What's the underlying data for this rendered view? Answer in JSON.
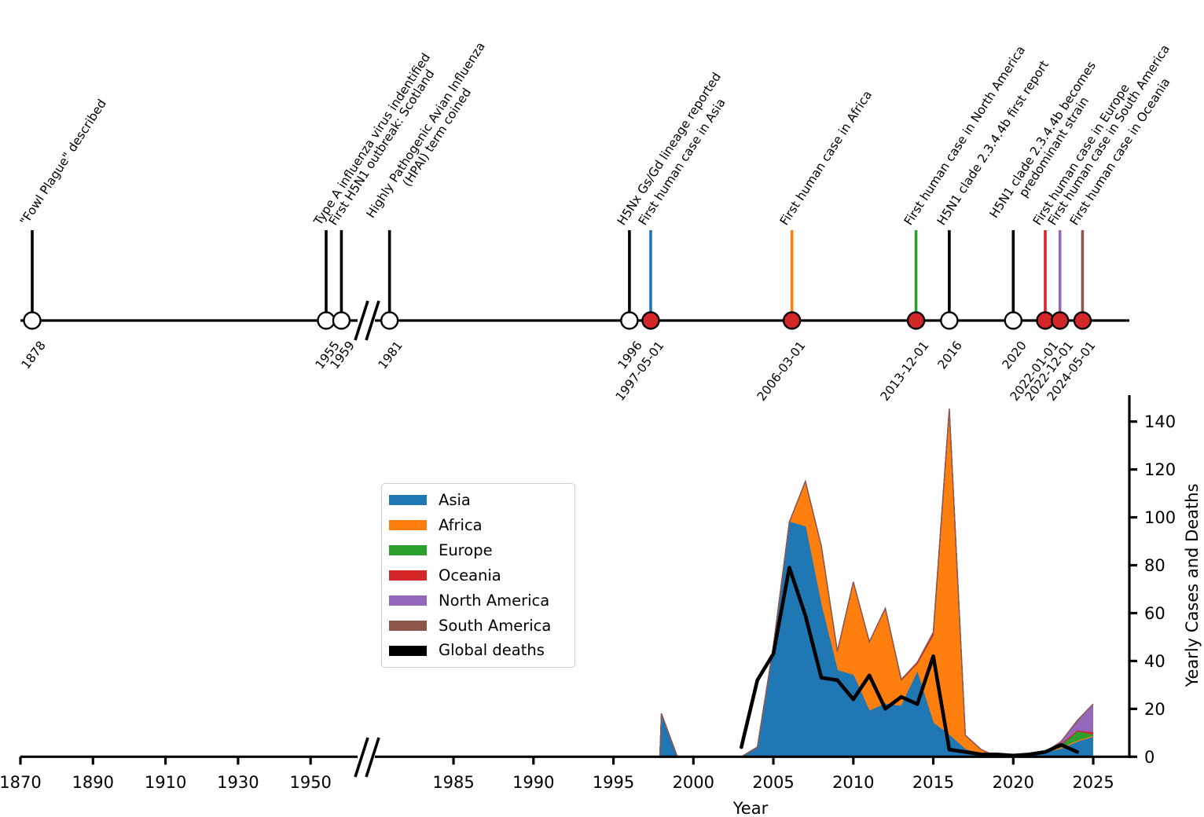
{
  "timeline": {
    "events": [
      {
        "date_label": "1878",
        "year": 1878,
        "lines": [
          "\"Fowl Plague\" described"
        ],
        "stem_color": "#000000",
        "marker_fill": "#ffffff"
      },
      {
        "date_label": "1955",
        "year": 1955,
        "lines": [
          "Type A influenza virus indentified"
        ],
        "stem_color": "#000000",
        "marker_fill": "#ffffff"
      },
      {
        "date_label": "1959",
        "year": 1959,
        "lines": [
          "First H5N1 outbreak: Scotland"
        ],
        "stem_color": "#000000",
        "marker_fill": "#ffffff"
      },
      {
        "date_label": "1981",
        "year": 1981,
        "lines": [
          "Highly Pathogenic Avian Influenza",
          "(HPAI) term coined"
        ],
        "stem_color": "#000000",
        "marker_fill": "#ffffff"
      },
      {
        "date_label": "1996",
        "year": 1996,
        "lines": [
          "H5Nx Gs/Gd lineage reported"
        ],
        "stem_color": "#000000",
        "marker_fill": "#ffffff"
      },
      {
        "date_label": "1997-05-01",
        "year": 1997.33,
        "lines": [
          "First human case in Asia"
        ],
        "stem_color": "#1f77b4",
        "marker_fill": "#d62728"
      },
      {
        "date_label": "2006-03-01",
        "year": 2006.16,
        "lines": [
          "First human case in Africa"
        ],
        "stem_color": "#ff7f0e",
        "marker_fill": "#d62728"
      },
      {
        "date_label": "2013-12-01",
        "year": 2013.92,
        "lines": [
          "First human case in North America"
        ],
        "stem_color": "#2ca02c",
        "marker_fill": "#d62728"
      },
      {
        "date_label": "2016",
        "year": 2016,
        "lines": [
          "H5N1 clade 2.3.4.4b first report"
        ],
        "stem_color": "#000000",
        "marker_fill": "#ffffff"
      },
      {
        "date_label": "2020",
        "year": 2020,
        "lines": [
          "H5N1 clade 2.3.4.4b becomes",
          "predominant strain"
        ],
        "stem_color": "#000000",
        "marker_fill": "#ffffff"
      },
      {
        "date_label": "2022-01-01",
        "year": 2022.0,
        "lines": [
          "First human case in Europe"
        ],
        "stem_color": "#d62728",
        "marker_fill": "#d62728"
      },
      {
        "date_label": "2022-12-01",
        "year": 2022.92,
        "lines": [
          "First human case in South America"
        ],
        "stem_color": "#9467bd",
        "marker_fill": "#d62728"
      },
      {
        "date_label": "2024-05-01",
        "year": 2024.33,
        "lines": [
          "First human case in Oceania"
        ],
        "stem_color": "#8c564b",
        "marker_fill": "#d62728"
      }
    ],
    "axis_break_between": [
      "1959",
      "1981"
    ]
  },
  "chart_data": {
    "type": "area",
    "stacked": true,
    "xlabel": "Year",
    "ylabel": "Yearly Cases and Deaths",
    "x_ticks_left": [
      1870,
      1890,
      1910,
      1930,
      1950
    ],
    "x_ticks_right": [
      1985,
      1990,
      1995,
      2000,
      2005,
      2010,
      2015,
      2020,
      2025
    ],
    "y_ticks": [
      0,
      20,
      40,
      60,
      80,
      100,
      120,
      140
    ],
    "ylim": [
      0,
      145
    ],
    "grid": false,
    "axis_break_on_x": true,
    "years_as_plotted": [
      1997,
      1997.9,
      1998,
      1999,
      2003,
      2004,
      2005,
      2006,
      2007,
      2008,
      2009,
      2010,
      2011,
      2012,
      2013,
      2014,
      2015,
      2016,
      2017,
      2018,
      2019,
      2020,
      2021,
      2022,
      2023,
      2024,
      2025
    ],
    "series": [
      {
        "name": "Asia",
        "color": "#1f77b4",
        "values": [
          0,
          0,
          18,
          0,
          0,
          4,
          46,
          98,
          96,
          63,
          36,
          34,
          19,
          22,
          21,
          35,
          14,
          9,
          3,
          1,
          0,
          1,
          1,
          2,
          3.5,
          6.5,
          8.5
        ]
      },
      {
        "name": "Africa",
        "color": "#ff7f0e",
        "values": [
          0,
          0,
          0,
          0,
          0,
          0,
          0,
          0,
          19,
          25,
          8,
          39,
          29,
          40,
          11,
          4,
          37,
          136,
          6,
          2,
          0,
          0,
          0,
          0,
          0,
          0,
          0
        ]
      },
      {
        "name": "Europe",
        "color": "#2ca02c",
        "values": [
          0,
          0,
          0,
          0,
          0,
          0,
          0,
          0,
          0,
          0,
          0,
          0,
          0,
          0,
          0,
          0,
          0,
          0,
          0,
          0,
          0,
          0,
          0,
          0,
          1.5,
          4,
          0.5
        ]
      },
      {
        "name": "Oceania",
        "color": "#d62728",
        "values": [
          0,
          0,
          0,
          0,
          0,
          0,
          0,
          0,
          0,
          0,
          0,
          0,
          0,
          0,
          0,
          0,
          0,
          0,
          0,
          0,
          0,
          0,
          0,
          0,
          0,
          0.2,
          1
        ]
      },
      {
        "name": "North America",
        "color": "#9467bd",
        "values": [
          0,
          0,
          0,
          0,
          0,
          0,
          0,
          0,
          0,
          0,
          0,
          0,
          0,
          0,
          0.3,
          0.5,
          1,
          0.5,
          0,
          0,
          0,
          0,
          0,
          0,
          1,
          3.5,
          12
        ]
      },
      {
        "name": "South America",
        "color": "#8c564b",
        "values": [
          0,
          0,
          0,
          0,
          0,
          0,
          0,
          0,
          0,
          0,
          0,
          0,
          0,
          0,
          0,
          0,
          0,
          0,
          0,
          0,
          0,
          0,
          0,
          0,
          0.5,
          1,
          0.1
        ]
      }
    ],
    "deaths_line": {
      "name": "Global deaths",
      "color": "#000000",
      "points": [
        [
          2003,
          4
        ],
        [
          2004,
          32
        ],
        [
          2005,
          43
        ],
        [
          2006,
          79
        ],
        [
          2007,
          59
        ],
        [
          2008,
          33
        ],
        [
          2009,
          32
        ],
        [
          2010,
          24
        ],
        [
          2011,
          34
        ],
        [
          2012,
          20
        ],
        [
          2013,
          25
        ],
        [
          2014,
          22
        ],
        [
          2015,
          42
        ],
        [
          2016,
          3
        ],
        [
          2017,
          2
        ],
        [
          2018,
          1
        ],
        [
          2019,
          1
        ],
        [
          2020,
          0.5
        ],
        [
          2021,
          1
        ],
        [
          2022,
          2
        ],
        [
          2023,
          5
        ],
        [
          2024,
          2
        ]
      ]
    },
    "legend": {
      "position": "center-left",
      "entries": [
        {
          "label": "Asia",
          "color": "#1f77b4"
        },
        {
          "label": "Africa",
          "color": "#ff7f0e"
        },
        {
          "label": "Europe",
          "color": "#2ca02c"
        },
        {
          "label": "Oceania",
          "color": "#d62728"
        },
        {
          "label": "North America",
          "color": "#9467bd"
        },
        {
          "label": "South America",
          "color": "#8c564b"
        },
        {
          "label": "Global deaths",
          "color": "#000000"
        }
      ]
    }
  },
  "colors": {
    "axis": "#000000",
    "human_case_marker": "#d62728",
    "event_marker": "#ffffff",
    "background": "#ffffff"
  }
}
